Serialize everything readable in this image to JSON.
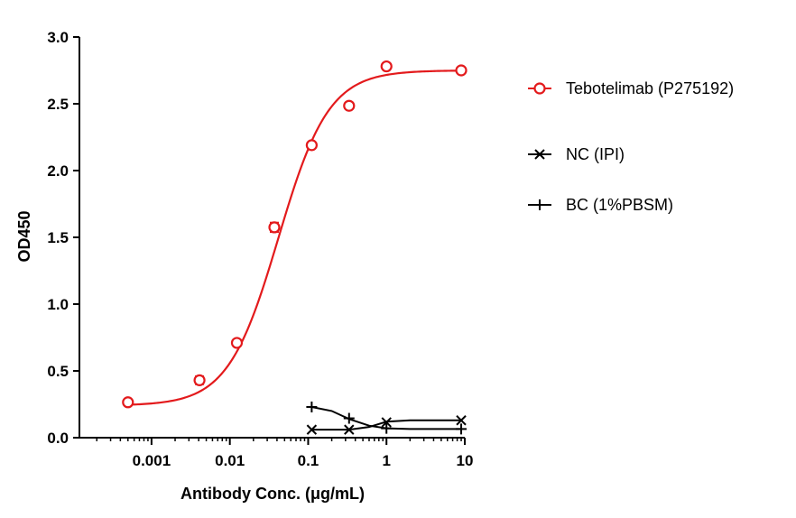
{
  "chart_data": {
    "type": "scatter",
    "title": "",
    "xlabel": "Antibody Conc. (μg/mL)",
    "ylabel": "OD450",
    "x_scale": "log",
    "xlim": [
      0.00012,
      10
    ],
    "ylim": [
      0,
      3.0
    ],
    "x_ticks": [
      0.001,
      0.01,
      0.1,
      1,
      10
    ],
    "x_tick_labels": [
      "0.001",
      "0.01",
      "0.1",
      "1",
      "10"
    ],
    "y_ticks": [
      0,
      0.5,
      1.0,
      1.5,
      2.0,
      2.5,
      3.0
    ],
    "y_tick_labels": [
      "0.0",
      "0.5",
      "1.0",
      "1.5",
      "2.0",
      "2.5",
      "3.0"
    ],
    "legend_position": "right",
    "grid": false,
    "series": [
      {
        "name": "Tebotelimab (P275192)",
        "color": "#e31a1c",
        "marker": "circle-open",
        "points": [
          {
            "x": 0.0005,
            "y": 0.265
          },
          {
            "x": 0.0041,
            "y": 0.43,
            "err": 0.03
          },
          {
            "x": 0.0123,
            "y": 0.71
          },
          {
            "x": 0.037,
            "y": 1.575,
            "err": 0.035
          },
          {
            "x": 0.111,
            "y": 2.19
          },
          {
            "x": 0.333,
            "y": 2.485
          },
          {
            "x": 1.0,
            "y": 2.78
          },
          {
            "x": 9.0,
            "y": 2.75
          }
        ],
        "fit": {
          "bottom": 0.24,
          "top": 2.75,
          "logEC50": -1.38,
          "hill": 1.35
        }
      },
      {
        "name": "NC (IPI)",
        "color": "#000000",
        "marker": "x",
        "points": [
          {
            "x": 0.111,
            "y": 0.06
          },
          {
            "x": 0.333,
            "y": 0.06
          },
          {
            "x": 1.0,
            "y": 0.115
          },
          {
            "x": 9.0,
            "y": 0.13
          }
        ],
        "curve": [
          [
            0.111,
            0.06
          ],
          [
            0.333,
            0.06
          ],
          [
            0.6,
            0.08
          ],
          [
            1.0,
            0.12
          ],
          [
            2.0,
            0.13
          ],
          [
            9.0,
            0.13
          ]
        ]
      },
      {
        "name": "BC (1%PBSM)",
        "color": "#000000",
        "marker": "plus",
        "points": [
          {
            "x": 0.111,
            "y": 0.23
          },
          {
            "x": 0.333,
            "y": 0.145
          },
          {
            "x": 1.0,
            "y": 0.07
          },
          {
            "x": 9.0,
            "y": 0.065
          }
        ],
        "curve": [
          [
            0.111,
            0.23
          ],
          [
            0.2,
            0.2
          ],
          [
            0.333,
            0.14
          ],
          [
            0.6,
            0.09
          ],
          [
            1.0,
            0.07
          ],
          [
            2.0,
            0.065
          ],
          [
            9.0,
            0.065
          ]
        ]
      }
    ]
  }
}
